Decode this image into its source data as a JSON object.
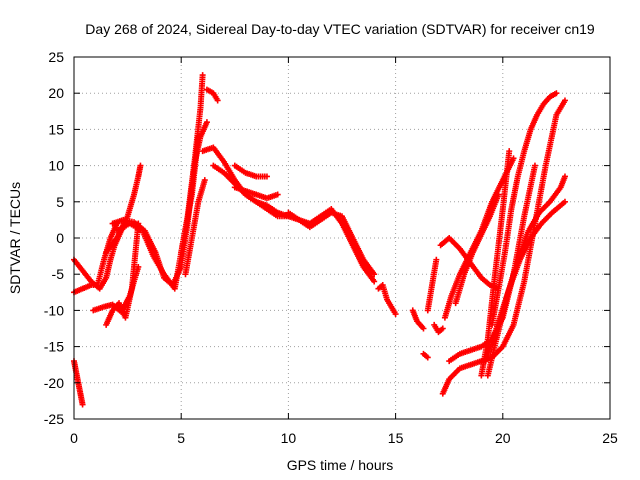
{
  "chart_data": {
    "type": "scatter",
    "title": "Day 268 of 2024, Sidereal Day-to-day VTEC variation (SDTVAR) for receiver cn19",
    "xlabel": "GPS time / hours",
    "ylabel": "SDTVAR / TECUs",
    "xlim": [
      0,
      25
    ],
    "ylim": [
      -25,
      25
    ],
    "xticks": [
      0,
      5,
      10,
      15,
      20,
      25
    ],
    "yticks": [
      -25,
      -20,
      -15,
      -10,
      -5,
      0,
      5,
      10,
      15,
      20,
      25
    ],
    "grid": true,
    "marker": "plus",
    "color": "#ff0000",
    "series": [
      {
        "name": "t1",
        "x": [
          0.0,
          0.1,
          0.2,
          0.3,
          0.4
        ],
        "y": [
          -17.0,
          -18.5,
          -20.0,
          -21.5,
          -23.0
        ]
      },
      {
        "name": "t2",
        "x": [
          0.0,
          0.4,
          0.8,
          1.0,
          1.2,
          1.5,
          1.7,
          1.9,
          2.2,
          2.5
        ],
        "y": [
          -3.0,
          -4.5,
          -6.0,
          -6.5,
          -7.0,
          -5.5,
          -3.0,
          -1.0,
          1.0,
          2.2
        ]
      },
      {
        "name": "t3",
        "x": [
          0.0,
          0.4,
          0.8,
          1.1,
          1.4,
          1.7,
          2.0
        ],
        "y": [
          -7.5,
          -7.0,
          -6.5,
          -6.5,
          -3.0,
          0.0,
          2.0
        ]
      },
      {
        "name": "t4",
        "x": [
          1.5,
          1.8,
          2.1,
          2.4,
          2.7,
          3.0
        ],
        "y": [
          -12.0,
          -10.0,
          -9.0,
          -11.0,
          -7.0,
          2.0
        ]
      },
      {
        "name": "t5",
        "x": [
          0.9,
          1.4,
          1.8,
          2.2,
          2.6,
          3.0
        ],
        "y": [
          -10.0,
          -9.5,
          -9.2,
          -10.2,
          -8.0,
          -4.0
        ]
      },
      {
        "name": "t6",
        "x": [
          1.5,
          2.0,
          2.5,
          2.8,
          3.0,
          3.1
        ],
        "y": [
          -2.0,
          0.0,
          3.0,
          6.0,
          8.5,
          10.0
        ]
      },
      {
        "name": "t7",
        "x": [
          1.8,
          2.3,
          2.8,
          3.3,
          3.8,
          4.2,
          4.6,
          5.0,
          5.3,
          5.6,
          5.9,
          6.0
        ],
        "y": [
          2.0,
          2.5,
          2.2,
          1.0,
          -2.0,
          -5.5,
          -6.5,
          -4.0,
          2.0,
          10.0,
          18.0,
          22.5
        ]
      },
      {
        "name": "t8",
        "x": [
          2.0,
          2.6,
          3.2,
          3.7,
          4.2,
          4.7,
          5.0,
          5.5,
          5.8
        ],
        "y": [
          1.0,
          2.0,
          1.0,
          -2.5,
          -5.0,
          -7.0,
          -2.0,
          6.0,
          14.0
        ]
      },
      {
        "name": "t9",
        "x": [
          5.0,
          5.3,
          5.6,
          5.9,
          6.2
        ],
        "y": [
          -2.0,
          3.0,
          10.0,
          14.0,
          16.0
        ]
      },
      {
        "name": "t10",
        "x": [
          5.2,
          5.5,
          5.8,
          6.1
        ],
        "y": [
          -5.0,
          0.0,
          5.0,
          8.0
        ]
      },
      {
        "name": "t11",
        "x": [
          6.2,
          6.5,
          6.7
        ],
        "y": [
          20.5,
          20.0,
          19.0
        ]
      },
      {
        "name": "t12",
        "x": [
          6.0,
          6.5,
          7.0,
          7.5,
          8.0,
          8.5,
          9.0,
          9.5,
          10.0
        ],
        "y": [
          12.0,
          12.5,
          10.5,
          8.0,
          6.0,
          5.0,
          4.0,
          3.0,
          3.0
        ]
      },
      {
        "name": "t13",
        "x": [
          6.5,
          7.0,
          7.5,
          8.0,
          8.5,
          9.0,
          9.5,
          10.0,
          10.5,
          11.0,
          11.5,
          12.0,
          12.5,
          13.0,
          13.5,
          14.0
        ],
        "y": [
          10.0,
          9.0,
          7.5,
          6.0,
          5.0,
          4.5,
          3.5,
          3.0,
          2.5,
          2.0,
          3.0,
          4.0,
          2.0,
          -1.0,
          -4.0,
          -6.0
        ]
      },
      {
        "name": "t14",
        "x": [
          7.5,
          8.0,
          8.5,
          9.0
        ],
        "y": [
          10.0,
          9.0,
          8.5,
          8.5
        ]
      },
      {
        "name": "t15",
        "x": [
          7.5,
          8.0,
          8.5,
          9.0,
          9.5
        ],
        "y": [
          7.0,
          6.5,
          6.0,
          5.5,
          6.0
        ]
      },
      {
        "name": "t16",
        "x": [
          10.0,
          10.5,
          11.0,
          11.5,
          12.0,
          12.5,
          13.0,
          13.5,
          14.0
        ],
        "y": [
          3.5,
          2.5,
          1.5,
          2.5,
          3.5,
          3.0,
          0.0,
          -3.0,
          -5.0
        ]
      },
      {
        "name": "t17",
        "x": [
          14.2,
          14.4,
          14.6,
          14.8,
          15.0
        ],
        "y": [
          -7.0,
          -6.5,
          -8.5,
          -9.5,
          -10.5
        ]
      },
      {
        "name": "t18",
        "x": [
          15.8,
          16.0,
          16.3
        ],
        "y": [
          -10.0,
          -11.5,
          -12.5
        ]
      },
      {
        "name": "t19",
        "x": [
          16.3,
          16.5
        ],
        "y": [
          -16.0,
          -16.5
        ]
      },
      {
        "name": "t20",
        "x": [
          16.5,
          16.9
        ],
        "y": [
          -10.0,
          -3.0
        ]
      },
      {
        "name": "t21",
        "x": [
          16.8,
          17.0,
          17.2
        ],
        "y": [
          -12.0,
          -13.0,
          -12.5
        ]
      },
      {
        "name": "t22",
        "x": [
          17.1,
          17.5,
          18.0,
          18.5,
          19.0,
          19.4,
          19.8
        ],
        "y": [
          -1.0,
          0.0,
          -1.5,
          -3.5,
          -5.5,
          -6.5,
          -7.0
        ]
      },
      {
        "name": "t23",
        "x": [
          17.3,
          17.6,
          18.0,
          18.5,
          19.0,
          19.5,
          20.0,
          20.5
        ],
        "y": [
          -11.0,
          -8.0,
          -5.0,
          -2.0,
          1.0,
          5.0,
          8.0,
          11.0
        ]
      },
      {
        "name": "t24",
        "x": [
          17.8,
          18.2,
          18.6,
          19.0,
          19.4,
          19.8
        ],
        "y": [
          -9.0,
          -5.0,
          -2.0,
          0.5,
          3.0,
          6.0
        ]
      },
      {
        "name": "t25",
        "x": [
          17.2,
          17.5,
          18.0,
          18.5,
          19.0,
          19.5,
          20.0,
          20.5,
          21.0,
          21.5,
          22.0,
          22.5,
          22.9
        ],
        "y": [
          -21.5,
          -19.5,
          -18.0,
          -17.5,
          -17.0,
          -16.5,
          -15.0,
          -12.0,
          -6.0,
          2.0,
          10.0,
          17.0,
          19.0
        ]
      },
      {
        "name": "t26",
        "x": [
          17.5,
          18.0,
          18.5,
          19.0,
          19.5,
          20.0,
          20.5,
          21.0,
          21.5
        ],
        "y": [
          -17.0,
          -16.0,
          -15.5,
          -15.0,
          -14.0,
          -11.0,
          -5.0,
          3.0,
          10.0
        ]
      },
      {
        "name": "t27",
        "x": [
          19.0,
          19.3,
          19.6,
          20.0,
          20.3
        ],
        "y": [
          -19.0,
          -14.0,
          -6.0,
          4.0,
          12.0
        ]
      },
      {
        "name": "t28",
        "x": [
          19.5,
          19.8,
          20.1,
          20.4,
          20.7,
          21.0,
          21.3,
          21.6,
          21.9,
          22.2,
          22.5
        ],
        "y": [
          -12.0,
          -7.0,
          -2.0,
          4.0,
          8.5,
          12.0,
          15.0,
          17.0,
          18.5,
          19.5,
          20.0
        ]
      },
      {
        "name": "t29",
        "x": [
          19.3,
          19.7,
          20.2,
          20.7,
          21.2,
          21.7,
          22.2,
          22.7,
          22.9
        ],
        "y": [
          -19.0,
          -14.0,
          -8.0,
          -3.0,
          1.0,
          3.5,
          5.0,
          7.0,
          8.5
        ]
      },
      {
        "name": "t30",
        "x": [
          19.2,
          19.7,
          20.3,
          20.8,
          21.3,
          21.8,
          22.3,
          22.9
        ],
        "y": [
          -17.0,
          -12.5,
          -7.0,
          -3.0,
          0.0,
          2.0,
          3.5,
          5.0
        ]
      }
    ]
  }
}
